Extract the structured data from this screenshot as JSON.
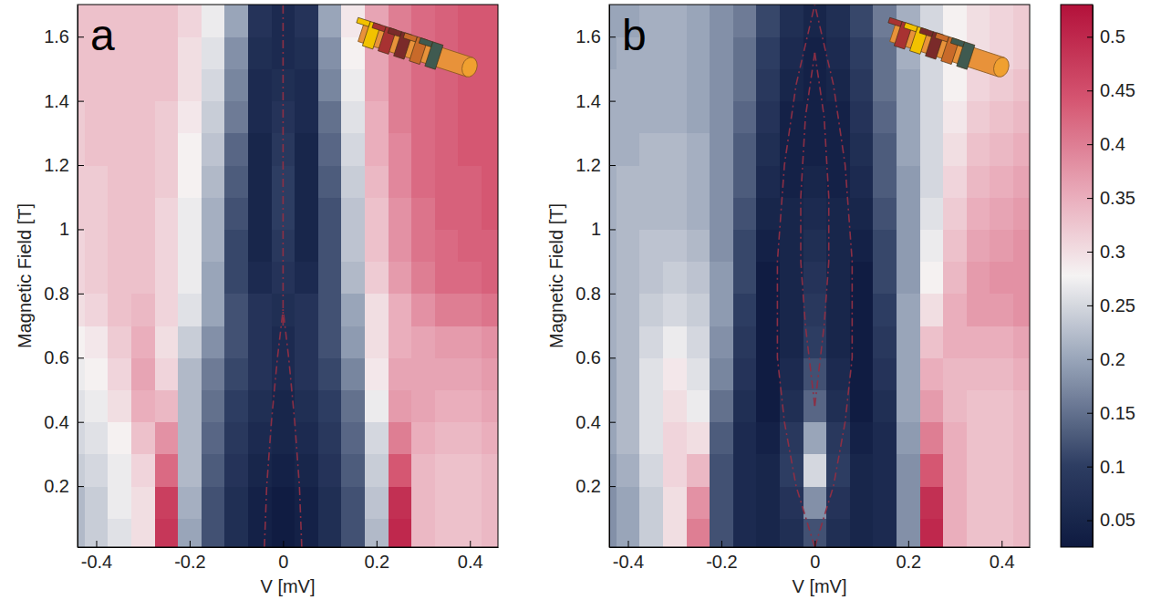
{
  "chart_data": [
    {
      "type": "heatmap",
      "title": "a",
      "xlabel": "V [mV]",
      "ylabel": "Magnetic Field [T]",
      "xlim": [
        -0.44,
        0.46
      ],
      "ylim": [
        0.01,
        1.7
      ],
      "xticks": [
        -0.4,
        -0.2,
        0,
        0.2,
        0.4
      ],
      "yticks": [
        0.2,
        0.4,
        0.6,
        0.8,
        1,
        1.2,
        1.4,
        1.6
      ],
      "xbins": [
        -0.475,
        -0.425,
        -0.375,
        -0.325,
        -0.275,
        -0.225,
        -0.175,
        -0.125,
        -0.075,
        -0.025,
        0.025,
        0.075,
        0.125,
        0.175,
        0.225,
        0.275,
        0.325,
        0.375,
        0.425,
        0.475
      ],
      "ybins": [
        0,
        0.1,
        0.2,
        0.3,
        0.4,
        0.5,
        0.6,
        0.7,
        0.8,
        0.9,
        1.0,
        1.1,
        1.2,
        1.3,
        1.4,
        1.5,
        1.6,
        1.7
      ],
      "cells": [
        [
          0.22,
          0.24,
          0.26,
          0.3,
          0.48,
          0.2,
          0.12,
          0.07,
          0.04,
          0.03,
          0.04,
          0.07,
          0.12,
          0.22,
          0.5,
          0.34,
          0.33,
          0.33,
          0.34
        ],
        [
          0.22,
          0.24,
          0.27,
          0.3,
          0.47,
          0.21,
          0.12,
          0.07,
          0.04,
          0.03,
          0.04,
          0.07,
          0.12,
          0.23,
          0.49,
          0.34,
          0.33,
          0.33,
          0.34
        ],
        [
          0.24,
          0.25,
          0.27,
          0.31,
          0.42,
          0.22,
          0.13,
          0.08,
          0.05,
          0.04,
          0.05,
          0.08,
          0.13,
          0.24,
          0.44,
          0.34,
          0.33,
          0.33,
          0.34
        ],
        [
          0.25,
          0.26,
          0.28,
          0.33,
          0.38,
          0.22,
          0.14,
          0.09,
          0.06,
          0.05,
          0.06,
          0.09,
          0.14,
          0.25,
          0.4,
          0.35,
          0.34,
          0.34,
          0.35
        ],
        [
          0.26,
          0.27,
          0.3,
          0.35,
          0.34,
          0.22,
          0.15,
          0.1,
          0.07,
          0.05,
          0.07,
          0.1,
          0.15,
          0.27,
          0.37,
          0.36,
          0.35,
          0.35,
          0.36
        ],
        [
          0.27,
          0.28,
          0.31,
          0.36,
          0.31,
          0.22,
          0.16,
          0.11,
          0.08,
          0.06,
          0.08,
          0.11,
          0.17,
          0.29,
          0.36,
          0.36,
          0.36,
          0.36,
          0.37
        ],
        [
          0.28,
          0.29,
          0.32,
          0.35,
          0.3,
          0.24,
          0.18,
          0.12,
          0.08,
          0.06,
          0.08,
          0.12,
          0.19,
          0.3,
          0.35,
          0.36,
          0.37,
          0.37,
          0.38
        ],
        [
          0.3,
          0.31,
          0.33,
          0.34,
          0.31,
          0.26,
          0.2,
          0.12,
          0.08,
          0.07,
          0.08,
          0.12,
          0.2,
          0.3,
          0.35,
          0.38,
          0.4,
          0.4,
          0.41
        ],
        [
          0.31,
          0.32,
          0.33,
          0.33,
          0.31,
          0.27,
          0.2,
          0.11,
          0.06,
          0.08,
          0.06,
          0.12,
          0.22,
          0.32,
          0.37,
          0.4,
          0.42,
          0.42,
          0.43
        ],
        [
          0.31,
          0.32,
          0.33,
          0.33,
          0.31,
          0.27,
          0.21,
          0.11,
          0.05,
          0.09,
          0.05,
          0.12,
          0.23,
          0.33,
          0.38,
          0.41,
          0.42,
          0.43,
          0.43
        ],
        [
          0.32,
          0.32,
          0.33,
          0.33,
          0.31,
          0.27,
          0.21,
          0.12,
          0.05,
          0.1,
          0.05,
          0.12,
          0.23,
          0.33,
          0.38,
          0.41,
          0.43,
          0.43,
          0.44
        ],
        [
          0.32,
          0.32,
          0.33,
          0.33,
          0.32,
          0.28,
          0.22,
          0.13,
          0.05,
          0.1,
          0.05,
          0.13,
          0.24,
          0.34,
          0.39,
          0.42,
          0.43,
          0.43,
          0.44
        ],
        [
          0.32,
          0.33,
          0.33,
          0.33,
          0.32,
          0.28,
          0.23,
          0.14,
          0.05,
          0.09,
          0.05,
          0.14,
          0.25,
          0.35,
          0.39,
          0.42,
          0.43,
          0.44,
          0.44
        ],
        [
          0.32,
          0.33,
          0.33,
          0.33,
          0.32,
          0.29,
          0.24,
          0.16,
          0.06,
          0.08,
          0.06,
          0.15,
          0.26,
          0.35,
          0.4,
          0.42,
          0.43,
          0.44,
          0.44
        ],
        [
          0.33,
          0.33,
          0.33,
          0.33,
          0.33,
          0.3,
          0.25,
          0.17,
          0.06,
          0.07,
          0.06,
          0.17,
          0.27,
          0.36,
          0.4,
          0.42,
          0.43,
          0.44,
          0.44
        ],
        [
          0.33,
          0.33,
          0.33,
          0.33,
          0.33,
          0.3,
          0.26,
          0.18,
          0.07,
          0.06,
          0.07,
          0.18,
          0.28,
          0.36,
          0.4,
          0.42,
          0.43,
          0.44,
          0.44
        ],
        [
          0.33,
          0.33,
          0.33,
          0.33,
          0.33,
          0.31,
          0.27,
          0.2,
          0.08,
          0.06,
          0.08,
          0.2,
          0.29,
          0.36,
          0.4,
          0.42,
          0.43,
          0.44,
          0.44
        ]
      ],
      "series": [
        {
          "type": "line",
          "line_style": "dashdot",
          "color": "#8c2f45",
          "x": [
            -0.04,
            -0.035,
            -0.025,
            -0.012,
            0
          ],
          "values": [
            0.01,
            0.2,
            0.4,
            0.6,
            0.75
          ]
        },
        {
          "type": "line",
          "line_style": "dashdot",
          "color": "#8c2f45",
          "x": [
            0.04,
            0.035,
            0.025,
            0.012,
            0
          ],
          "values": [
            0.01,
            0.2,
            0.4,
            0.6,
            0.75
          ]
        },
        {
          "type": "line",
          "line_style": "dashdot",
          "color": "#8c2f45",
          "x": [
            0,
            0
          ],
          "values": [
            0.7,
            1.7
          ]
        }
      ]
    },
    {
      "type": "heatmap",
      "title": "b",
      "xlabel": "V [mV]",
      "ylabel": "Magnetic Field [T]",
      "xlim": [
        -0.44,
        0.46
      ],
      "ylim": [
        0.01,
        1.7
      ],
      "xticks": [
        -0.4,
        -0.2,
        0,
        0.2,
        0.4
      ],
      "yticks": [
        0.2,
        0.4,
        0.6,
        0.8,
        1,
        1.2,
        1.4,
        1.6
      ],
      "xbins": [
        -0.475,
        -0.425,
        -0.375,
        -0.325,
        -0.275,
        -0.225,
        -0.175,
        -0.125,
        -0.075,
        -0.025,
        0.025,
        0.075,
        0.125,
        0.175,
        0.225,
        0.275,
        0.325,
        0.375,
        0.425,
        0.475
      ],
      "ybins": [
        0,
        0.1,
        0.2,
        0.3,
        0.4,
        0.5,
        0.6,
        0.7,
        0.8,
        0.9,
        1.0,
        1.1,
        1.2,
        1.3,
        1.4,
        1.5,
        1.6,
        1.7
      ],
      "cells": [
        [
          0.18,
          0.2,
          0.24,
          0.3,
          0.4,
          0.12,
          0.06,
          0.05,
          0.07,
          0.12,
          0.07,
          0.05,
          0.06,
          0.18,
          0.5,
          0.35,
          0.33,
          0.33,
          0.34
        ],
        [
          0.18,
          0.2,
          0.24,
          0.3,
          0.38,
          0.12,
          0.06,
          0.05,
          0.08,
          0.18,
          0.08,
          0.05,
          0.06,
          0.18,
          0.49,
          0.35,
          0.33,
          0.33,
          0.34
        ],
        [
          0.19,
          0.21,
          0.25,
          0.31,
          0.34,
          0.12,
          0.06,
          0.05,
          0.1,
          0.25,
          0.1,
          0.05,
          0.06,
          0.18,
          0.44,
          0.35,
          0.33,
          0.33,
          0.34
        ],
        [
          0.2,
          0.22,
          0.26,
          0.31,
          0.3,
          0.13,
          0.06,
          0.04,
          0.09,
          0.2,
          0.09,
          0.04,
          0.06,
          0.19,
          0.4,
          0.35,
          0.33,
          0.33,
          0.34
        ],
        [
          0.2,
          0.22,
          0.26,
          0.3,
          0.27,
          0.15,
          0.07,
          0.03,
          0.07,
          0.14,
          0.07,
          0.03,
          0.07,
          0.2,
          0.37,
          0.34,
          0.33,
          0.33,
          0.34
        ],
        [
          0.2,
          0.22,
          0.26,
          0.29,
          0.26,
          0.17,
          0.08,
          0.03,
          0.06,
          0.12,
          0.06,
          0.03,
          0.08,
          0.2,
          0.35,
          0.34,
          0.34,
          0.34,
          0.35
        ],
        [
          0.21,
          0.22,
          0.25,
          0.27,
          0.25,
          0.18,
          0.09,
          0.03,
          0.05,
          0.1,
          0.05,
          0.03,
          0.09,
          0.2,
          0.33,
          0.35,
          0.35,
          0.35,
          0.36
        ],
        [
          0.21,
          0.22,
          0.24,
          0.25,
          0.24,
          0.19,
          0.1,
          0.03,
          0.05,
          0.09,
          0.05,
          0.03,
          0.1,
          0.2,
          0.3,
          0.35,
          0.37,
          0.37,
          0.38
        ],
        [
          0.21,
          0.22,
          0.23,
          0.24,
          0.23,
          0.19,
          0.11,
          0.03,
          0.05,
          0.08,
          0.05,
          0.03,
          0.11,
          0.19,
          0.28,
          0.34,
          0.37,
          0.38,
          0.38
        ],
        [
          0.21,
          0.22,
          0.23,
          0.23,
          0.22,
          0.18,
          0.11,
          0.04,
          0.05,
          0.07,
          0.05,
          0.04,
          0.11,
          0.19,
          0.27,
          0.33,
          0.36,
          0.37,
          0.38
        ],
        [
          0.21,
          0.22,
          0.22,
          0.22,
          0.21,
          0.18,
          0.12,
          0.05,
          0.05,
          0.06,
          0.05,
          0.05,
          0.12,
          0.19,
          0.26,
          0.32,
          0.35,
          0.36,
          0.37
        ],
        [
          0.21,
          0.22,
          0.22,
          0.22,
          0.21,
          0.18,
          0.13,
          0.06,
          0.04,
          0.05,
          0.04,
          0.06,
          0.13,
          0.19,
          0.25,
          0.31,
          0.34,
          0.35,
          0.36
        ],
        [
          0.21,
          0.21,
          0.22,
          0.22,
          0.21,
          0.18,
          0.13,
          0.07,
          0.04,
          0.04,
          0.04,
          0.07,
          0.13,
          0.2,
          0.25,
          0.3,
          0.33,
          0.34,
          0.35
        ],
        [
          0.21,
          0.21,
          0.21,
          0.21,
          0.2,
          0.18,
          0.14,
          0.08,
          0.04,
          0.04,
          0.04,
          0.08,
          0.14,
          0.2,
          0.25,
          0.29,
          0.32,
          0.33,
          0.34
        ],
        [
          0.21,
          0.21,
          0.21,
          0.21,
          0.2,
          0.18,
          0.15,
          0.09,
          0.05,
          0.04,
          0.05,
          0.09,
          0.15,
          0.2,
          0.25,
          0.28,
          0.31,
          0.32,
          0.33
        ],
        [
          0.2,
          0.21,
          0.21,
          0.21,
          0.2,
          0.18,
          0.15,
          0.1,
          0.06,
          0.04,
          0.06,
          0.1,
          0.15,
          0.21,
          0.25,
          0.28,
          0.3,
          0.31,
          0.32
        ],
        [
          0.2,
          0.2,
          0.21,
          0.21,
          0.2,
          0.18,
          0.16,
          0.11,
          0.07,
          0.05,
          0.07,
          0.11,
          0.16,
          0.21,
          0.25,
          0.28,
          0.3,
          0.31,
          0.32
        ]
      ],
      "series": [
        {
          "type": "line",
          "line_style": "dashdot",
          "color": "#8c2f45",
          "x": [
            0,
            -0.04,
            -0.065,
            -0.08,
            -0.08,
            -0.065,
            -0.04,
            0
          ],
          "values": [
            0.01,
            0.2,
            0.4,
            0.6,
            0.9,
            1.2,
            1.45,
            1.7
          ]
        },
        {
          "type": "line",
          "line_style": "dashdot",
          "color": "#8c2f45",
          "x": [
            0,
            0.04,
            0.065,
            0.08,
            0.08,
            0.065,
            0.04,
            0
          ],
          "values": [
            0.01,
            0.2,
            0.4,
            0.6,
            0.9,
            1.2,
            1.45,
            1.7
          ]
        },
        {
          "type": "line",
          "line_style": "dashdot",
          "color": "#8c2f45",
          "x": [
            0,
            -0.02,
            -0.03,
            -0.03,
            -0.02,
            0
          ],
          "values": [
            0.45,
            0.7,
            0.9,
            1.1,
            1.35,
            1.55
          ]
        },
        {
          "type": "line",
          "line_style": "dashdot",
          "color": "#8c2f45",
          "x": [
            0,
            0.02,
            0.03,
            0.03,
            0.02,
            0
          ],
          "values": [
            0.45,
            0.7,
            0.9,
            1.1,
            1.35,
            1.55
          ]
        }
      ],
      "colorbar_range": [
        0.025,
        0.53
      ],
      "colorbar_ticks": [
        0.05,
        0.1,
        0.15,
        0.2,
        0.25,
        0.3,
        0.35,
        0.4,
        0.45,
        0.5
      ]
    }
  ]
}
